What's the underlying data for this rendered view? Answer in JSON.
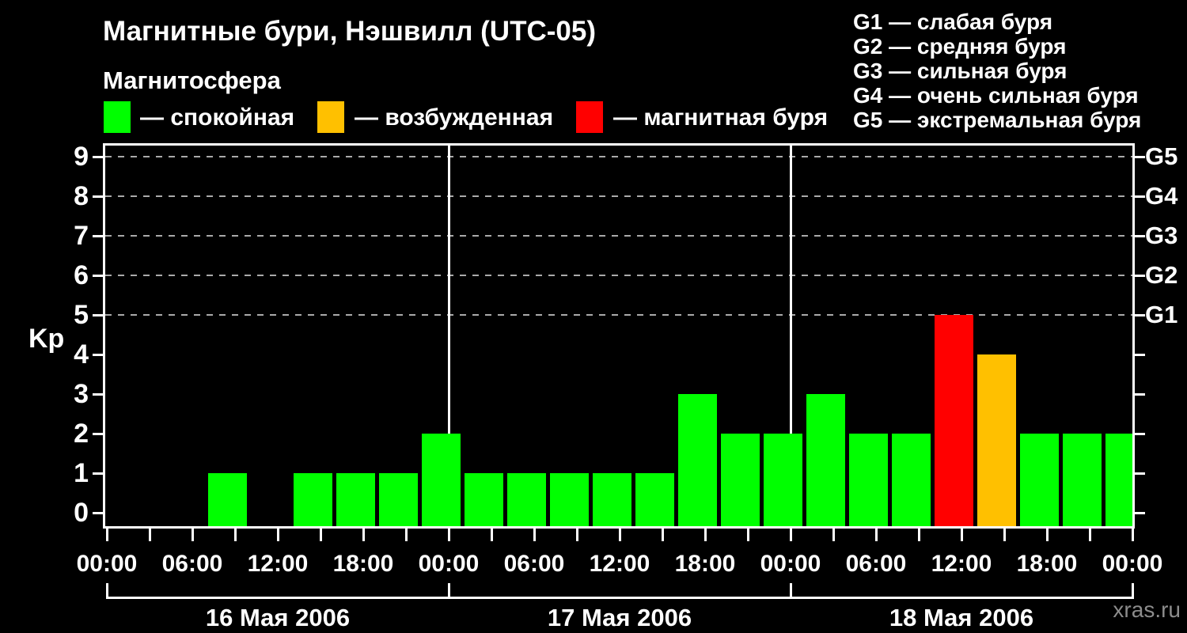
{
  "title": "Магнитные бури, Нэшвилл (UTC-05)",
  "subtitle": "Магнитосфера",
  "legend": [
    {
      "label": "— спокойная",
      "color": "#00ff00"
    },
    {
      "label": "— возбужденная",
      "color": "#ffc000"
    },
    {
      "label": "— магнитная буря",
      "color": "#ff0000"
    }
  ],
  "g_legend": [
    "G1 — слабая буря",
    "G2 — средняя буря",
    "G3 — сильная буря",
    "G4 — очень сильная буря",
    "G5 — экстремальная буря"
  ],
  "watermark": "xras.ru",
  "chart_data": {
    "type": "bar",
    "title": "Магнитные бури, Нэшвилл (UTC-05)",
    "ylabel": "Kp",
    "ylim": [
      0,
      9
    ],
    "y_ticks": [
      0,
      1,
      2,
      3,
      4,
      5,
      6,
      7,
      8,
      9
    ],
    "grid_values": [
      5,
      6,
      7,
      8,
      9
    ],
    "right_axis_labels": {
      "5": "G1",
      "6": "G2",
      "7": "G3",
      "8": "G4",
      "9": "G5"
    },
    "x_tick_labels": [
      "00:00",
      "06:00",
      "12:00",
      "18:00",
      "00:00",
      "06:00",
      "12:00",
      "18:00",
      "00:00",
      "06:00",
      "12:00",
      "18:00",
      "00:00"
    ],
    "x_tick_label_step_hours": 6,
    "x_minor_tick_step_hours": 3,
    "bar_interval_hours": 3,
    "days": [
      {
        "date": "16 Мая 2006",
        "kp_3h": [
          0,
          0,
          1,
          0,
          1,
          1,
          1,
          2
        ]
      },
      {
        "date": "17 Мая 2006",
        "kp_3h": [
          1,
          1,
          1,
          1,
          1,
          3,
          2,
          2
        ]
      },
      {
        "date": "18 Мая 2006",
        "kp_3h": [
          3,
          2,
          2,
          5,
          4,
          2,
          2,
          2
        ]
      }
    ],
    "colors": {
      "quiet": "#00ff00",
      "excited": "#ffc000",
      "storm": "#ff0000"
    },
    "color_rule": {
      "excited_min_kp": 4,
      "storm_min_kp": 5
    },
    "grid_color": "#aaaaaa",
    "legend_position": "top"
  }
}
